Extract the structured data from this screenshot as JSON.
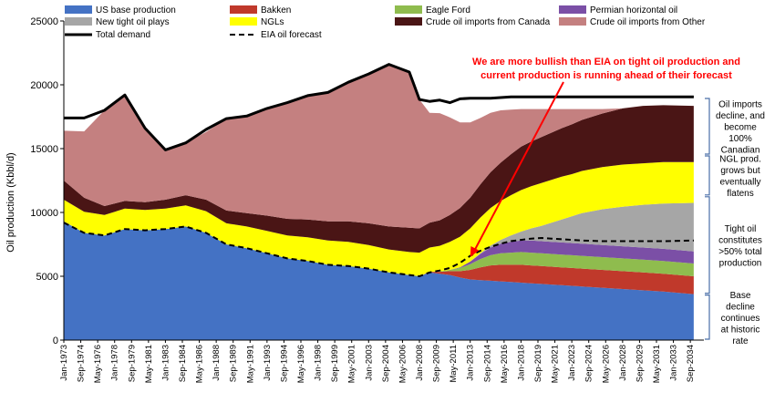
{
  "chart_data": {
    "type": "area",
    "title": "",
    "ylabel": "Oil production (Kbbl/d)",
    "xlabel": "",
    "ylim": [
      0,
      25000
    ],
    "yticks": [
      0,
      5000,
      10000,
      15000,
      20000,
      25000
    ],
    "xlim": [
      1973.0,
      2036.0
    ],
    "xtick_labels": [
      "Jan-1973",
      "Sep-1974",
      "May-1976",
      "Jan-1978",
      "Sep-1979",
      "May-1981",
      "Jan-1983",
      "Sep-1984",
      "May-1986",
      "Jan-1988",
      "Sep-1989",
      "May-1991",
      "Jan-1993",
      "Sep-1994",
      "May-1996",
      "Jan-1998",
      "Sep-1999",
      "May-2001",
      "Jan-2003",
      "Sep-2004",
      "May-2006",
      "Jan-2008",
      "Sep-2009",
      "May-2011",
      "Jan-2013",
      "Sep-2014",
      "May-2016",
      "Jan-2018",
      "Sep-2019",
      "May-2021",
      "Jan-2023",
      "Sep-2024",
      "May-2026",
      "Jan-2028",
      "Sep-2029",
      "May-2031",
      "Jan-2033",
      "Sep-2034"
    ],
    "legend_placement": "top",
    "x": [
      1973,
      1975,
      1977,
      1979,
      1981,
      1983,
      1985,
      1987,
      1989,
      1991,
      1993,
      1995,
      1997,
      1999,
      2001,
      2003,
      2005,
      2007,
      2008,
      2009,
      2010,
      2011,
      2012,
      2013,
      2014,
      2015,
      2016,
      2017,
      2018,
      2019,
      2020,
      2021,
      2022,
      2023,
      2024,
      2026,
      2028,
      2030,
      2032,
      2035
    ],
    "series": [
      {
        "name": "US base production",
        "color": "#4472c4",
        "stacked": true,
        "values": [
          9300,
          8400,
          8200,
          8700,
          8600,
          8700,
          8900,
          8400,
          7500,
          7200,
          6800,
          6400,
          6200,
          5900,
          5800,
          5600,
          5300,
          5100,
          5000,
          5300,
          5200,
          5100,
          4900,
          4750,
          4700,
          4650,
          4600,
          4550,
          4500,
          4450,
          4400,
          4350,
          4300,
          4250,
          4200,
          4100,
          4000,
          3900,
          3800,
          3600
        ]
      },
      {
        "name": "Bakken",
        "color": "#c0392b",
        "stacked": true,
        "values": [
          0,
          0,
          0,
          0,
          0,
          0,
          0,
          0,
          0,
          0,
          0,
          0,
          0,
          0,
          0,
          0,
          0,
          0,
          0,
          50,
          150,
          300,
          500,
          750,
          1000,
          1200,
          1300,
          1350,
          1400,
          1400,
          1400,
          1400,
          1400,
          1400,
          1400,
          1400,
          1400,
          1400,
          1400,
          1400
        ]
      },
      {
        "name": "Eagle Ford",
        "color": "#8fbc4e",
        "stacked": true,
        "values": [
          0,
          0,
          0,
          0,
          0,
          0,
          0,
          0,
          0,
          0,
          0,
          0,
          0,
          0,
          0,
          0,
          0,
          0,
          0,
          0,
          30,
          100,
          250,
          450,
          650,
          800,
          900,
          950,
          1000,
          1000,
          1000,
          1000,
          1000,
          1000,
          1000,
          1000,
          1000,
          1000,
          1000,
          1000
        ]
      },
      {
        "name": "Permian horizontal oil",
        "color": "#7b4fa6",
        "stacked": true,
        "values": [
          0,
          0,
          0,
          0,
          0,
          0,
          0,
          0,
          0,
          0,
          0,
          0,
          0,
          0,
          0,
          0,
          0,
          0,
          0,
          0,
          0,
          0,
          50,
          200,
          400,
          600,
          750,
          850,
          900,
          950,
          950,
          950,
          950,
          950,
          950,
          950,
          950,
          950,
          950,
          950
        ]
      },
      {
        "name": "New tight oil plays",
        "color": "#a6a6a6",
        "stacked": true,
        "values": [
          0,
          0,
          0,
          0,
          0,
          0,
          0,
          0,
          0,
          0,
          0,
          0,
          0,
          0,
          0,
          0,
          0,
          0,
          0,
          0,
          0,
          0,
          0,
          0,
          50,
          150,
          300,
          500,
          700,
          950,
          1200,
          1500,
          1800,
          2100,
          2400,
          2800,
          3100,
          3350,
          3550,
          3800
        ]
      },
      {
        "name": "NGLs",
        "color": "#ffff00",
        "stacked": true,
        "values": [
          1700,
          1650,
          1600,
          1600,
          1600,
          1600,
          1650,
          1700,
          1650,
          1700,
          1750,
          1800,
          1850,
          1900,
          1900,
          1850,
          1800,
          1800,
          1850,
          1900,
          2000,
          2200,
          2400,
          2600,
          2800,
          2950,
          3050,
          3150,
          3250,
          3300,
          3350,
          3350,
          3350,
          3300,
          3300,
          3300,
          3300,
          3250,
          3250,
          3200
        ]
      },
      {
        "name": "Crude oil imports from Canada",
        "color": "#4a1515",
        "stacked": true,
        "values": [
          1500,
          1100,
          700,
          600,
          600,
          700,
          800,
          900,
          1000,
          1050,
          1200,
          1300,
          1400,
          1500,
          1600,
          1700,
          1800,
          1900,
          1900,
          1950,
          2000,
          2100,
          2250,
          2400,
          2600,
          2800,
          3000,
          3200,
          3400,
          3500,
          3600,
          3700,
          3800,
          3900,
          4000,
          4200,
          4400,
          4500,
          4450,
          4400
        ]
      },
      {
        "name": "Crude oil imports from Other",
        "color": "#c48080",
        "stacked": true,
        "values": [
          3900,
          5200,
          7500,
          8300,
          5800,
          3900,
          4100,
          5300,
          7200,
          7600,
          8400,
          9100,
          9700,
          10100,
          10900,
          11700,
          12700,
          12300,
          10100,
          8600,
          8400,
          7650,
          6700,
          5900,
          5200,
          4650,
          4100,
          3500,
          2950,
          2550,
          2200,
          1850,
          1500,
          1200,
          850,
          350,
          0,
          0,
          0,
          0
        ]
      },
      {
        "name": "Total demand",
        "color": "#000000",
        "stacked": false,
        "values": [
          17400,
          17400,
          18000,
          19200,
          16600,
          14900,
          15450,
          16500,
          17350,
          17550,
          18150,
          18600,
          19150,
          19400,
          20200,
          20850,
          21600,
          21000,
          18850,
          18700,
          18800,
          18600,
          18900,
          18950,
          18950,
          18950,
          19000,
          19050,
          19050,
          19050,
          19050,
          19050,
          19050,
          19050,
          19050,
          19050,
          19050,
          19050,
          19050,
          19050
        ]
      },
      {
        "name": "EIA oil forecast",
        "color": "#000000",
        "stacked": false,
        "dashed": true,
        "values": [
          9200,
          8400,
          8200,
          8700,
          8600,
          8700,
          8900,
          8400,
          7500,
          7200,
          6800,
          6400,
          6200,
          5900,
          5800,
          5600,
          5300,
          5100,
          5000,
          5300,
          5450,
          5650,
          6050,
          6600,
          7000,
          7300,
          7550,
          7750,
          7850,
          7950,
          8000,
          7950,
          7900,
          7850,
          7800,
          7750,
          7750,
          7750,
          7750,
          7800
        ]
      }
    ],
    "annotations": {
      "headline": [
        "We are more bullish than EIA on tight oil production and",
        "current production is running ahead of their forecast"
      ],
      "headline_color": "#ff0000",
      "arrow_target": {
        "x": 2013.0,
        "y": 6500
      },
      "brackets": [
        {
          "range": [
            14500,
            19000
          ],
          "lines": [
            "Oil imports",
            "decline, and",
            "become",
            "100%",
            "Canadian"
          ]
        },
        {
          "range": [
            11300,
            14500
          ],
          "lines": [
            "NGL prod.",
            "grows but",
            "eventually",
            "flatens"
          ]
        },
        {
          "range": [
            3600,
            11300
          ],
          "lines": [
            "Tight oil",
            "constitutes",
            ">50% total",
            "production"
          ]
        },
        {
          "range": [
            0,
            3600
          ],
          "lines": [
            "Base",
            "decline",
            "continues",
            "at historic",
            "rate"
          ]
        }
      ]
    }
  }
}
